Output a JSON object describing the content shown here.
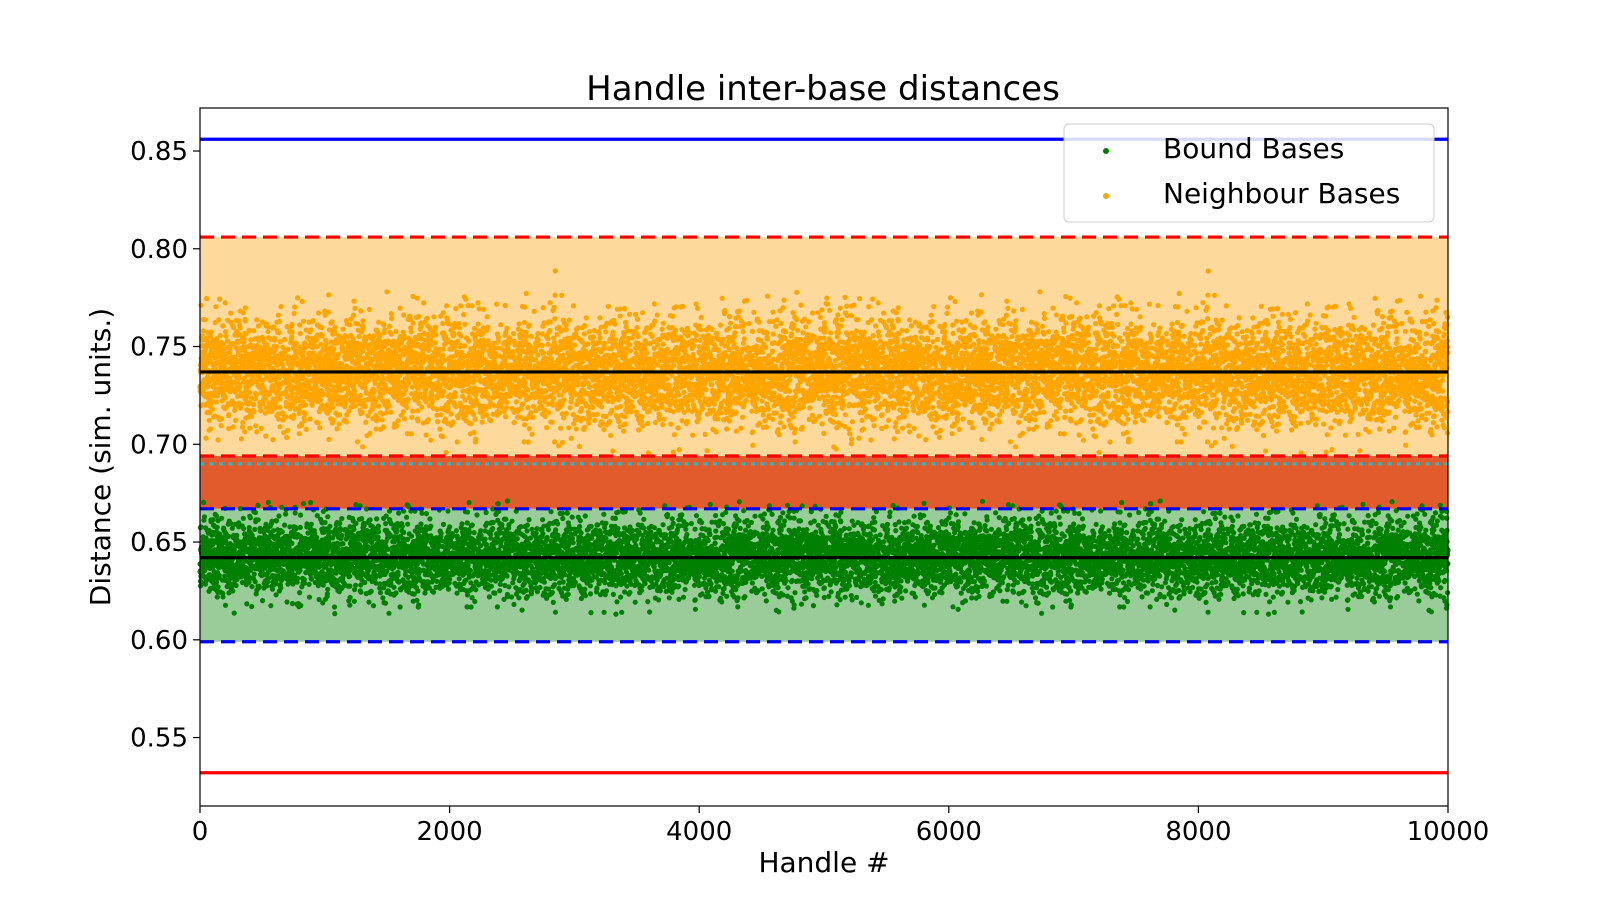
{
  "chart_data": {
    "type": "scatter",
    "title": "Handle inter-base distances",
    "xlabel": "Handle #",
    "ylabel": "Distance (sim. units.)",
    "xlim": [
      0,
      10000
    ],
    "ylim": [
      0.515,
      0.872
    ],
    "xticks": [
      {
        "value": 0,
        "label": "0"
      },
      {
        "value": 2000,
        "label": "2000"
      },
      {
        "value": 4000,
        "label": "4000"
      },
      {
        "value": 6000,
        "label": "6000"
      },
      {
        "value": 8000,
        "label": "8000"
      },
      {
        "value": 10000,
        "label": "10000"
      }
    ],
    "yticks": [
      {
        "value": 0.55,
        "label": "0.55"
      },
      {
        "value": 0.6,
        "label": "0.60"
      },
      {
        "value": 0.65,
        "label": "0.65"
      },
      {
        "value": 0.7,
        "label": "0.70"
      },
      {
        "value": 0.75,
        "label": "0.75"
      },
      {
        "value": 0.8,
        "label": "0.80"
      },
      {
        "value": 0.85,
        "label": "0.85"
      }
    ],
    "grid": false,
    "legend": {
      "position": "top-right",
      "entries": [
        {
          "name": "Bound Bases",
          "color": "#008000"
        },
        {
          "name": "Neighbour Bases",
          "color": "#FFA500"
        }
      ]
    },
    "series": [
      {
        "name": "Bound Bases",
        "color": "#008000",
        "n_points": 10000,
        "mean": 0.642,
        "spread_sd": 0.0095,
        "min": 0.613,
        "max": 0.673
      },
      {
        "name": "Neighbour Bases",
        "color": "#FFA500",
        "n_points": 10000,
        "mean": 0.737,
        "spread_sd": 0.0135,
        "min": 0.695,
        "max": 0.79
      }
    ],
    "bands": [
      {
        "from": 0.694,
        "to": 0.806,
        "color": "#FDD99B"
      },
      {
        "from": 0.667,
        "to": 0.694,
        "color": "#E15B2C"
      },
      {
        "from": 0.599,
        "to": 0.667,
        "color": "#99CC99"
      }
    ],
    "hlines": [
      {
        "y": 0.856,
        "color": "#0000FF",
        "style": "solid"
      },
      {
        "y": 0.806,
        "color": "#FF0000",
        "style": "dashed"
      },
      {
        "y": 0.737,
        "color": "#000000",
        "style": "solid"
      },
      {
        "y": 0.694,
        "color": "#FF0000",
        "style": "dashed"
      },
      {
        "y": 0.69,
        "color": "#17BECF",
        "style": "dotted"
      },
      {
        "y": 0.667,
        "color": "#0000FF",
        "style": "dashed"
      },
      {
        "y": 0.642,
        "color": "#000000",
        "style": "solid"
      },
      {
        "y": 0.599,
        "color": "#0000FF",
        "style": "dashed"
      },
      {
        "y": 0.532,
        "color": "#FF0000",
        "style": "solid"
      }
    ]
  }
}
